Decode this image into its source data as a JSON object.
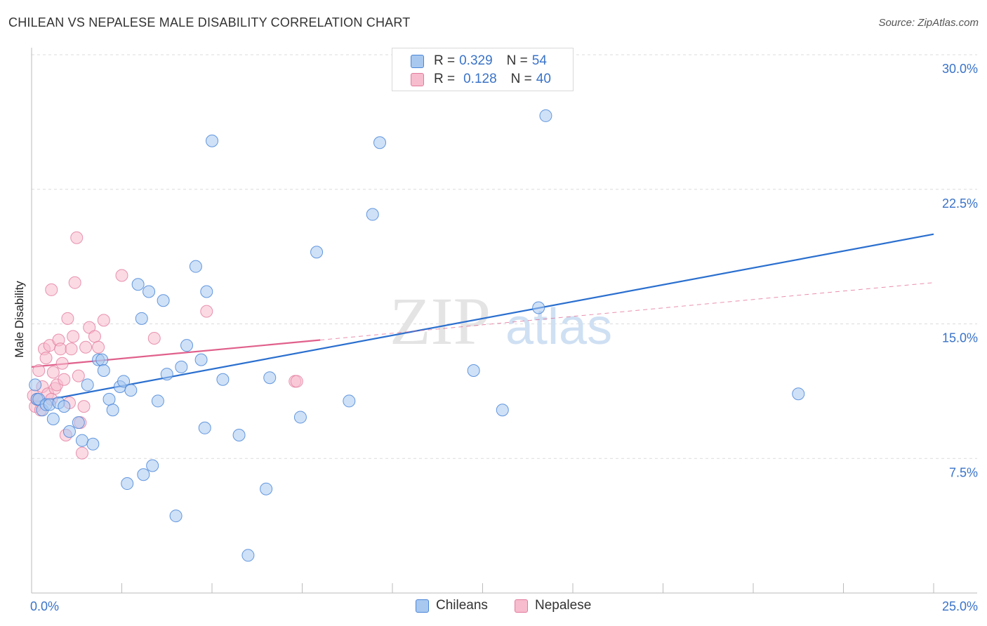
{
  "title": "CHILEAN VS NEPALESE MALE DISABILITY CORRELATION CHART",
  "source": "Source: ZipAtlas.com",
  "watermark": {
    "zip": "ZIP",
    "atlas": "atlas"
  },
  "legend": {
    "series": [
      {
        "r_label": "R =",
        "r_value": "0.329",
        "n_label": "N =",
        "n_value": "54"
      },
      {
        "r_label": "R =",
        "r_value": "0.128",
        "n_label": "N =",
        "n_value": "40"
      }
    ]
  },
  "colors": {
    "blue_fill": "#a8c8f0",
    "blue_stroke": "#4a86d8",
    "blue_line": "#2a6fcf",
    "pink_fill": "#f7bccd",
    "pink_stroke": "#e27a9c",
    "pink_line": "#e0608c",
    "axis_text": "#3a73c8",
    "grid": "#dcdcdc"
  },
  "chart_data": {
    "type": "scatter",
    "title": "CHILEAN VS NEPALESE MALE DISABILITY CORRELATION CHART",
    "xlabel": "",
    "ylabel": "Male Disability",
    "xlim": [
      0,
      25
    ],
    "ylim": [
      0,
      30
    ],
    "x_tick_labels": [
      {
        "value": 0,
        "label": "0.0%"
      },
      {
        "value": 25,
        "label": "25.0%"
      }
    ],
    "y_tick_labels": [
      {
        "value": 7.5,
        "label": "7.5%"
      },
      {
        "value": 15,
        "label": "15.0%"
      },
      {
        "value": 22.5,
        "label": "22.5%"
      },
      {
        "value": 30,
        "label": "30.0%"
      }
    ],
    "series": [
      {
        "name": "Chileans",
        "color": "#4a86d8",
        "trend": {
          "x": [
            0,
            25
          ],
          "y": [
            10.6,
            20.0
          ],
          "dashed_extension": false
        },
        "points": [
          [
            0.1,
            11.6
          ],
          [
            0.15,
            10.8
          ],
          [
            0.2,
            10.8
          ],
          [
            0.3,
            10.2
          ],
          [
            0.4,
            10.5
          ],
          [
            0.5,
            10.5
          ],
          [
            0.6,
            9.7
          ],
          [
            0.75,
            10.6
          ],
          [
            0.9,
            10.4
          ],
          [
            1.05,
            9.0
          ],
          [
            1.3,
            9.5
          ],
          [
            1.4,
            8.5
          ],
          [
            1.55,
            11.6
          ],
          [
            1.7,
            8.3
          ],
          [
            1.85,
            13.0
          ],
          [
            1.95,
            13.0
          ],
          [
            2.0,
            12.4
          ],
          [
            2.15,
            10.8
          ],
          [
            2.25,
            10.2
          ],
          [
            2.45,
            11.5
          ],
          [
            2.55,
            11.8
          ],
          [
            2.65,
            6.1
          ],
          [
            2.75,
            11.3
          ],
          [
            2.95,
            17.2
          ],
          [
            3.05,
            15.3
          ],
          [
            3.1,
            6.6
          ],
          [
            3.25,
            16.8
          ],
          [
            3.35,
            7.1
          ],
          [
            3.5,
            10.7
          ],
          [
            3.65,
            16.3
          ],
          [
            3.75,
            12.2
          ],
          [
            4.0,
            4.3
          ],
          [
            4.15,
            12.6
          ],
          [
            4.3,
            13.8
          ],
          [
            4.55,
            18.2
          ],
          [
            4.7,
            13.0
          ],
          [
            4.8,
            9.2
          ],
          [
            4.85,
            16.8
          ],
          [
            5.0,
            25.2
          ],
          [
            5.3,
            11.9
          ],
          [
            5.75,
            8.8
          ],
          [
            6.0,
            2.1
          ],
          [
            6.5,
            5.8
          ],
          [
            6.6,
            12.0
          ],
          [
            7.45,
            9.8
          ],
          [
            7.9,
            19.0
          ],
          [
            8.8,
            10.7
          ],
          [
            9.45,
            21.1
          ],
          [
            9.65,
            25.1
          ],
          [
            12.25,
            12.4
          ],
          [
            13.05,
            10.2
          ],
          [
            14.05,
            15.9
          ],
          [
            14.25,
            26.6
          ],
          [
            21.25,
            11.1
          ]
        ]
      },
      {
        "name": "Nepalese",
        "color": "#e27a9c",
        "trend": {
          "x": [
            0,
            8
          ],
          "y": [
            12.6,
            14.1
          ],
          "extension": {
            "x": [
              8,
              25
            ],
            "y": [
              14.1,
              17.3
            ]
          }
        },
        "points": [
          [
            0.05,
            11.0
          ],
          [
            0.1,
            10.4
          ],
          [
            0.15,
            10.8
          ],
          [
            0.2,
            12.4
          ],
          [
            0.25,
            10.2
          ],
          [
            0.3,
            11.5
          ],
          [
            0.35,
            13.6
          ],
          [
            0.4,
            13.1
          ],
          [
            0.45,
            11.1
          ],
          [
            0.5,
            13.8
          ],
          [
            0.55,
            16.9
          ],
          [
            0.6,
            12.3
          ],
          [
            0.65,
            11.4
          ],
          [
            0.7,
            11.6
          ],
          [
            0.75,
            14.1
          ],
          [
            0.8,
            13.6
          ],
          [
            0.85,
            12.8
          ],
          [
            0.9,
            11.9
          ],
          [
            0.95,
            8.8
          ],
          [
            1.0,
            15.3
          ],
          [
            1.05,
            10.6
          ],
          [
            1.1,
            13.6
          ],
          [
            1.15,
            14.3
          ],
          [
            1.2,
            17.3
          ],
          [
            1.25,
            19.8
          ],
          [
            1.3,
            12.1
          ],
          [
            1.35,
            9.5
          ],
          [
            1.4,
            7.8
          ],
          [
            1.45,
            10.4
          ],
          [
            1.5,
            13.7
          ],
          [
            1.6,
            14.8
          ],
          [
            1.75,
            14.3
          ],
          [
            1.85,
            13.7
          ],
          [
            2.0,
            15.2
          ],
          [
            2.5,
            17.7
          ],
          [
            3.4,
            14.2
          ],
          [
            4.85,
            15.7
          ],
          [
            7.3,
            11.8
          ],
          [
            7.35,
            11.8
          ],
          [
            0.55,
            10.8
          ]
        ]
      }
    ]
  },
  "bottom_legend": [
    "Chileans",
    "Nepalese"
  ]
}
